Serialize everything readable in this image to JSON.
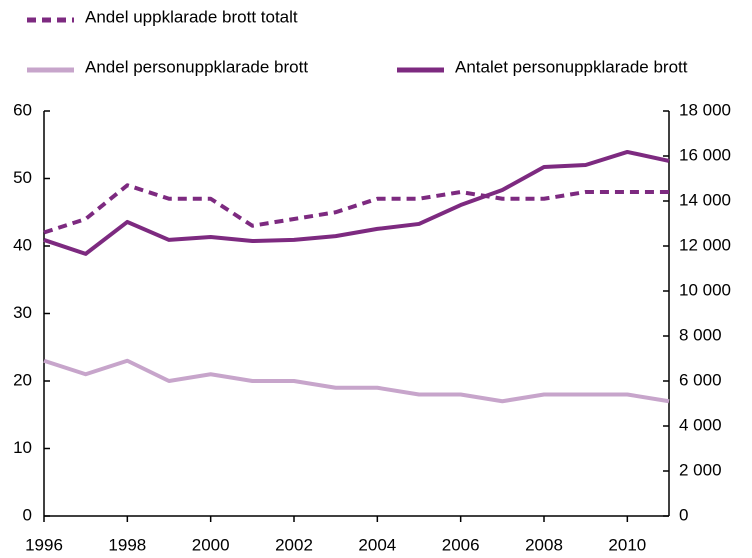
{
  "chart_data": {
    "type": "line",
    "x": [
      1996,
      1997,
      1998,
      1999,
      2000,
      2001,
      2002,
      2003,
      2004,
      2005,
      2006,
      2007,
      2008,
      2009,
      2010,
      2011
    ],
    "series": [
      {
        "name": "Andel uppklarade brott totalt",
        "color": "#7d2a80",
        "dash": true,
        "values": [
          42,
          44,
          49,
          47,
          47,
          43,
          44,
          45,
          47,
          47,
          48,
          47,
          47,
          48,
          48,
          48
        ]
      },
      {
        "name": "Andel personuppklarade brott",
        "color": "#c7a5cb",
        "dash": false,
        "values": [
          23,
          21,
          23,
          20,
          21,
          20,
          20,
          19,
          19,
          18,
          18,
          17,
          18,
          18,
          18,
          17
        ]
      },
      {
        "name": "Antalet personuppklarade brott",
        "color": "#7d2a80",
        "dash": false,
        "axis": "y2",
        "values": [
          12270,
          11650,
          13070,
          12270,
          12400,
          12220,
          12270,
          12440,
          12760,
          12980,
          13820,
          14490,
          15510,
          15600,
          16180,
          15780
        ]
      }
    ],
    "xlim": [
      1996,
      2011
    ],
    "xticks": [
      1996,
      1998,
      2000,
      2002,
      2004,
      2006,
      2008,
      2010
    ],
    "ylim": [
      0,
      60
    ],
    "yticks": [
      0,
      10,
      20,
      30,
      40,
      50,
      60
    ],
    "y2lim": [
      0,
      18000
    ],
    "y2ticks": [
      0,
      {
        "value": 2000,
        "label": "2 000"
      },
      {
        "value": 4000,
        "label": "4 000"
      },
      {
        "value": 6000,
        "label": "6 000"
      },
      {
        "value": 8000,
        "label": "8 000"
      },
      {
        "value": 10000,
        "label": "10 000"
      },
      {
        "value": 12000,
        "label": "12 000"
      },
      {
        "value": 14000,
        "label": "14 000"
      },
      {
        "value": 16000,
        "label": "16 000"
      },
      {
        "value": 18000,
        "label": "18 000"
      }
    ],
    "grid": false
  }
}
